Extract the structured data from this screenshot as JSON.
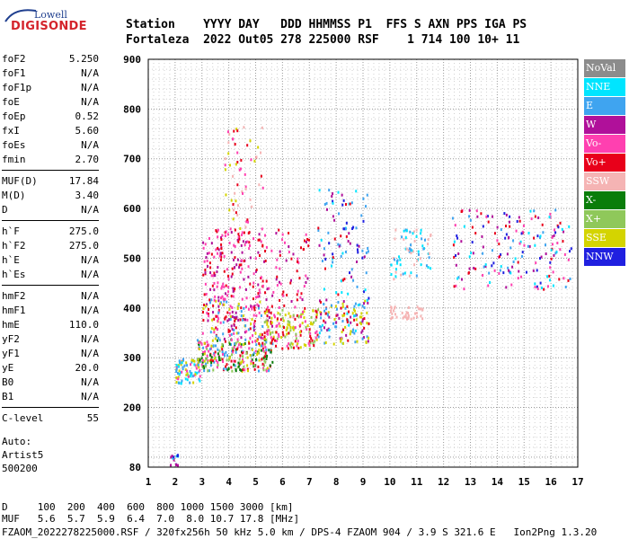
{
  "logo": {
    "top": "Lowell",
    "main": "DIGISONDE"
  },
  "header": {
    "row1": "Station    YYYY DAY   DDD HHMMSS P1  FFS S AXN PPS IGA PS",
    "row2": "Fortaleza  2022 Out05 278 225000 RSF    1 714 100 10+ 11"
  },
  "params": {
    "group1": [
      {
        "label": "foF2",
        "value": "5.250"
      },
      {
        "label": "foF1",
        "value": "N/A"
      },
      {
        "label": "foF1p",
        "value": "N/A"
      },
      {
        "label": "foE",
        "value": "N/A"
      },
      {
        "label": "foEp",
        "value": "0.52"
      },
      {
        "label": "fxI",
        "value": "5.60"
      },
      {
        "label": "foEs",
        "value": "N/A"
      },
      {
        "label": "fmin",
        "value": "2.70"
      }
    ],
    "group2": [
      {
        "label": "MUF(D)",
        "value": "17.84"
      },
      {
        "label": "M(D)",
        "value": "3.40"
      },
      {
        "label": "D",
        "value": "N/A"
      }
    ],
    "group3": [
      {
        "label": "h`F",
        "value": "275.0"
      },
      {
        "label": "h`F2",
        "value": "275.0"
      },
      {
        "label": "h`E",
        "value": "N/A"
      },
      {
        "label": "h`Es",
        "value": "N/A"
      }
    ],
    "group4": [
      {
        "label": "hmF2",
        "value": "N/A"
      },
      {
        "label": "hmF1",
        "value": "N/A"
      },
      {
        "label": "hmE",
        "value": "110.0"
      },
      {
        "label": "yF2",
        "value": "N/A"
      },
      {
        "label": "yF1",
        "value": "N/A"
      },
      {
        "label": "yE",
        "value": "20.0"
      },
      {
        "label": "B0",
        "value": "N/A"
      },
      {
        "label": "B1",
        "value": "N/A"
      }
    ],
    "group5": [
      {
        "label": "C-level",
        "value": "55"
      }
    ]
  },
  "auto": {
    "line1": "Auto:",
    "line2": "Artist5",
    "line3": "500200"
  },
  "legend": [
    {
      "label": "NoVal",
      "color": "#8c8c8c"
    },
    {
      "label": "NNE",
      "color": "#00e5ff"
    },
    {
      "label": "E",
      "color": "#3fa4f0"
    },
    {
      "label": "W",
      "color": "#b0109a"
    },
    {
      "label": "Vo-",
      "color": "#ff40b0"
    },
    {
      "label": "Vo+",
      "color": "#e8001a"
    },
    {
      "label": "SSW",
      "color": "#f5b4b4"
    },
    {
      "label": "X-",
      "color": "#0a7d0a"
    },
    {
      "label": "X+",
      "color": "#8fc85a"
    },
    {
      "label": "SSE",
      "color": "#d4d400"
    },
    {
      "label": "NNW",
      "color": "#2020e0"
    }
  ],
  "footer": {
    "d_row": "D     100  200  400  600  800 1000 1500 3000 [km]",
    "muf_row": "MUF   5.6  5.7  5.9  6.4  7.0  8.0 10.7 17.8 [MHz]",
    "file_row": "FZAOM_2022278225000.RSF / 320fx256h 50 kHz 5.0 km / DPS-4 FZAOM 904 / 3.9 S 321.6 E   Ion2Png 1.3.20"
  },
  "chart_data": {
    "type": "scatter",
    "xlim": [
      1,
      17
    ],
    "ylim": [
      80,
      900
    ],
    "x_ticks": [
      1,
      2,
      3,
      4,
      5,
      6,
      7,
      8,
      9,
      10,
      11,
      12,
      13,
      14,
      15,
      16,
      17
    ],
    "y_ticks": [
      80,
      200,
      300,
      400,
      500,
      600,
      700,
      800,
      900
    ],
    "x_minor_step": 0.2,
    "y_minor_step": 20,
    "grid": true,
    "legend_position": "right",
    "clusters": [
      {
        "fmin": 1.8,
        "fmax": 2.1,
        "hmin": 85,
        "hmax": 110,
        "count": 14,
        "colors": [
          "#2020e0",
          "#b0109a",
          "#00e5ff"
        ]
      },
      {
        "fmin": 2.0,
        "fmax": 2.9,
        "hmin": 250,
        "hmax": 300,
        "count": 80,
        "colors": [
          "#3fa4f0",
          "#ff40b0",
          "#d4d400",
          "#00e5ff"
        ]
      },
      {
        "fmin": 2.8,
        "fmax": 5.6,
        "hmin": 275,
        "hmax": 340,
        "count": 260,
        "colors": [
          "#d4d400",
          "#8fc85a",
          "#e8001a",
          "#ff40b0",
          "#3fa4f0",
          "#0a7d0a"
        ]
      },
      {
        "fmin": 3.0,
        "fmax": 5.6,
        "hmin": 340,
        "hmax": 420,
        "count": 160,
        "colors": [
          "#e8001a",
          "#ff40b0",
          "#d4d400",
          "#b0109a",
          "#3fa4f0"
        ]
      },
      {
        "fmin": 3.0,
        "fmax": 5.3,
        "hmin": 420,
        "hmax": 560,
        "count": 170,
        "colors": [
          "#b0109a",
          "#e8001a",
          "#ff40b0"
        ]
      },
      {
        "fmin": 3.8,
        "fmax": 5.3,
        "hmin": 560,
        "hmax": 770,
        "count": 60,
        "colors": [
          "#f5b4b4",
          "#d4d400",
          "#ff40b0",
          "#e8001a"
        ]
      },
      {
        "fmin": 5.3,
        "fmax": 7.3,
        "hmin": 320,
        "hmax": 400,
        "count": 150,
        "colors": [
          "#d4d400",
          "#e8001a",
          "#ff40b0",
          "#8fc85a"
        ]
      },
      {
        "fmin": 5.3,
        "fmax": 7.0,
        "hmin": 400,
        "hmax": 560,
        "count": 70,
        "colors": [
          "#e8001a",
          "#b0109a",
          "#ff40b0"
        ]
      },
      {
        "fmin": 7.3,
        "fmax": 9.2,
        "hmin": 330,
        "hmax": 420,
        "count": 130,
        "colors": [
          "#d4d400",
          "#b0109a",
          "#00e5ff",
          "#3fa4f0",
          "#e8001a"
        ]
      },
      {
        "fmin": 7.3,
        "fmax": 9.2,
        "hmin": 420,
        "hmax": 640,
        "count": 90,
        "colors": [
          "#00e5ff",
          "#3fa4f0",
          "#b0109a",
          "#2020e0",
          "#e8001a"
        ]
      },
      {
        "fmin": 10.0,
        "fmax": 11.2,
        "hmin": 380,
        "hmax": 405,
        "count": 40,
        "colors": [
          "#f5b4b4"
        ]
      },
      {
        "fmin": 10.0,
        "fmax": 11.5,
        "hmin": 460,
        "hmax": 560,
        "count": 70,
        "colors": [
          "#00e5ff",
          "#3fa4f0",
          "#f5b4b4"
        ]
      },
      {
        "fmin": 12.3,
        "fmax": 16.8,
        "hmin": 440,
        "hmax": 600,
        "count": 180,
        "colors": [
          "#2020e0",
          "#b0109a",
          "#00e5ff",
          "#3fa4f0",
          "#e8001a",
          "#ff40b0"
        ]
      }
    ]
  }
}
